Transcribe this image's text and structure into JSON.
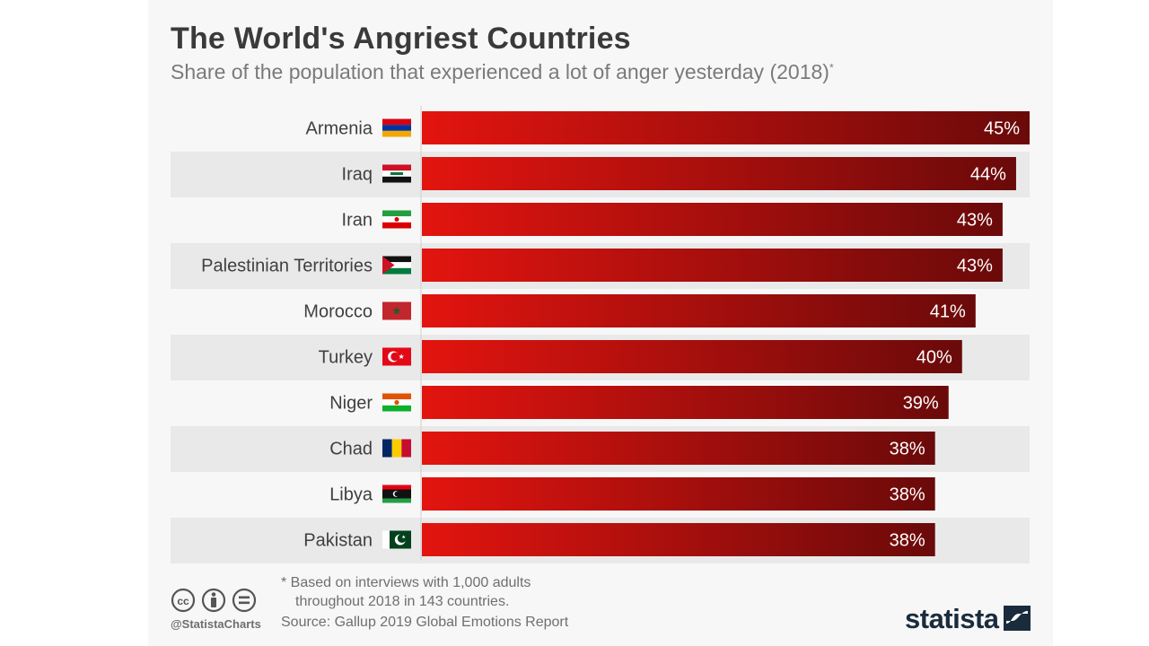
{
  "header": {
    "title": "The World's Angriest Countries",
    "subtitle": "Share of the population that experienced a lot of anger yesterday (2018)",
    "subtitle_mark": "*"
  },
  "chart_data": {
    "type": "bar",
    "orientation": "horizontal",
    "title": "The World's Angriest Countries",
    "subtitle": "Share of the population that experienced a lot of anger yesterday (2018)*",
    "categories": [
      "Armenia",
      "Iraq",
      "Iran",
      "Palestinian Territories",
      "Morocco",
      "Turkey",
      "Niger",
      "Chad",
      "Libya",
      "Pakistan"
    ],
    "values": [
      45,
      44,
      43,
      43,
      41,
      40,
      39,
      38,
      38,
      38
    ],
    "value_labels": [
      "45%",
      "44%",
      "43%",
      "43%",
      "41%",
      "40%",
      "39%",
      "38%",
      "38%",
      "38%"
    ],
    "unit": "%",
    "xlim": [
      0,
      45
    ],
    "grid": false,
    "legend": "none",
    "colors": {
      "bar_start": "#e3140f",
      "bar_end": "#6a0a0a",
      "stripe": "#e9e9e9"
    },
    "flags": [
      "armenia-flag",
      "iraq-flag",
      "iran-flag",
      "palestine-flag",
      "morocco-flag",
      "turkey-flag",
      "niger-flag",
      "chad-flag",
      "libya-flag",
      "pakistan-flag"
    ]
  },
  "footer": {
    "note_line1": "* Based on interviews with 1,000 adults",
    "note_line2": "throughout 2018 in 143 countries.",
    "source": "Source: Gallup 2019 Global Emotions Report",
    "handle": "@StatistaCharts",
    "brand": "statista",
    "license_icons": [
      "cc-icon",
      "attribution-icon",
      "no-derivatives-icon"
    ]
  }
}
